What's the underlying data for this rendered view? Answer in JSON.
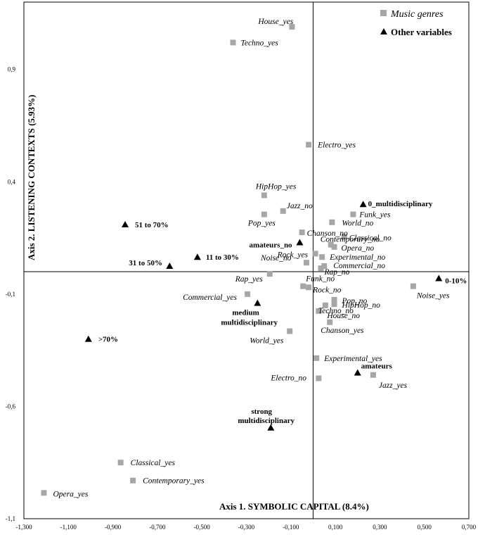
{
  "chart_data": {
    "type": "scatter",
    "xlabel": "Axis 1. SYMBOLIC CAPITAL (8.4%)",
    "ylabel": "Axis 2. LISTENING CONTEXTS (5.93%)",
    "xlim": [
      -1.3,
      0.7
    ],
    "ylim": [
      -1.1,
      1.2
    ],
    "xticks": [
      "-1,300",
      "-1,100",
      "-0,900",
      "-0,700",
      "-0,500",
      "-0,300",
      "-0,100",
      "0,100",
      "0,300",
      "0,500",
      "0,700"
    ],
    "yticks": [
      {
        "v": 0.9,
        "t": "0,9"
      },
      {
        "v": 0.4,
        "t": "0,4"
      },
      {
        "v": -0.1,
        "t": "-0,1"
      },
      {
        "v": -0.6,
        "t": "-0,6"
      },
      {
        "v": -1.1,
        "t": "-1,1"
      }
    ],
    "legend": {
      "position": "top-right",
      "music": "Music genres",
      "other": "Other variables"
    },
    "colors": {
      "music": "#a6a6a6",
      "other": "#000000"
    },
    "music_genres": [
      {
        "name": "House_yes",
        "x": -0.095,
        "y": 1.09
      },
      {
        "name": "Techno_yes",
        "x": -0.36,
        "y": 1.02
      },
      {
        "name": "Electro_yes",
        "x": -0.02,
        "y": 0.565
      },
      {
        "name": "HipHop_yes",
        "x": -0.22,
        "y": 0.34
      },
      {
        "name": "Jazz_no",
        "x": -0.135,
        "y": 0.27
      },
      {
        "name": "Pop_yes",
        "x": -0.22,
        "y": 0.255
      },
      {
        "name": "Funk_yes",
        "x": 0.18,
        "y": 0.255
      },
      {
        "name": "World_no",
        "x": 0.085,
        "y": 0.22
      },
      {
        "name": "Chanson_no",
        "x": -0.05,
        "y": 0.175
      },
      {
        "name": "Classical_no",
        "x": 0.14,
        "y": 0.155
      },
      {
        "name": "Contemporary_no",
        "x": 0.08,
        "y": 0.12
      },
      {
        "name": "Opera_no",
        "x": 0.095,
        "y": 0.11
      },
      {
        "name": "Rock_yes",
        "x": 0.01,
        "y": 0.08
      },
      {
        "name": "Experimental_no",
        "x": 0.04,
        "y": 0.065
      },
      {
        "name": "Noise_no",
        "x": -0.03,
        "y": 0.04
      },
      {
        "name": "Commercial_no",
        "x": 0.05,
        "y": 0.025
      },
      {
        "name": "Rap_no",
        "x": 0.035,
        "y": 0.015
      },
      {
        "name": "Rap_yes",
        "x": -0.195,
        "y": -0.01
      },
      {
        "name": "Funk_no",
        "x": -0.045,
        "y": -0.065
      },
      {
        "name": "Rock_no",
        "x": -0.02,
        "y": -0.07
      },
      {
        "name": "Commercial_yes",
        "x": -0.295,
        "y": -0.1
      },
      {
        "name": "Pop_no",
        "x": 0.095,
        "y": -0.125
      },
      {
        "name": "HipHop_no",
        "x": 0.095,
        "y": -0.145
      },
      {
        "name": "Techno_no",
        "x": 0.055,
        "y": -0.15
      },
      {
        "name": "House_no",
        "x": 0.025,
        "y": -0.175
      },
      {
        "name": "Chanson_yes",
        "x": 0.075,
        "y": -0.225
      },
      {
        "name": "World_yes",
        "x": -0.105,
        "y": -0.265
      },
      {
        "name": "Noise_yes",
        "x": 0.45,
        "y": -0.065
      },
      {
        "name": "Experimental_yes",
        "x": 0.015,
        "y": -0.385
      },
      {
        "name": "Electro_no",
        "x": 0.025,
        "y": -0.475
      },
      {
        "name": "Jazz_yes",
        "x": 0.27,
        "y": -0.46
      },
      {
        "name": "Classical_yes",
        "x": -0.865,
        "y": -0.85
      },
      {
        "name": "Contemporary_yes",
        "x": -0.81,
        "y": -0.93
      },
      {
        "name": "Opera_yes",
        "x": -1.21,
        "y": -0.985
      }
    ],
    "other_variables": [
      {
        "name": "0_multidisciplinary",
        "x": 0.225,
        "y": 0.3
      },
      {
        "name": "amateurs_no",
        "x": -0.06,
        "y": 0.13
      },
      {
        "name": "51 to 70%",
        "x": -0.845,
        "y": 0.21
      },
      {
        "name": "11 to 30%",
        "x": -0.52,
        "y": 0.065
      },
      {
        "name": "31 to 50%",
        "x": -0.645,
        "y": 0.025
      },
      {
        "name": "0-10%",
        "x": 0.565,
        "y": -0.03
      },
      {
        "name": "medium multidisciplinary",
        "x": -0.25,
        "y": -0.14
      },
      {
        "name": ">70%",
        "x": -1.01,
        "y": -0.3
      },
      {
        "name": "amateurs",
        "x": 0.2,
        "y": -0.45
      },
      {
        "name": "strong multidisciplinary",
        "x": -0.19,
        "y": -0.695
      }
    ]
  }
}
